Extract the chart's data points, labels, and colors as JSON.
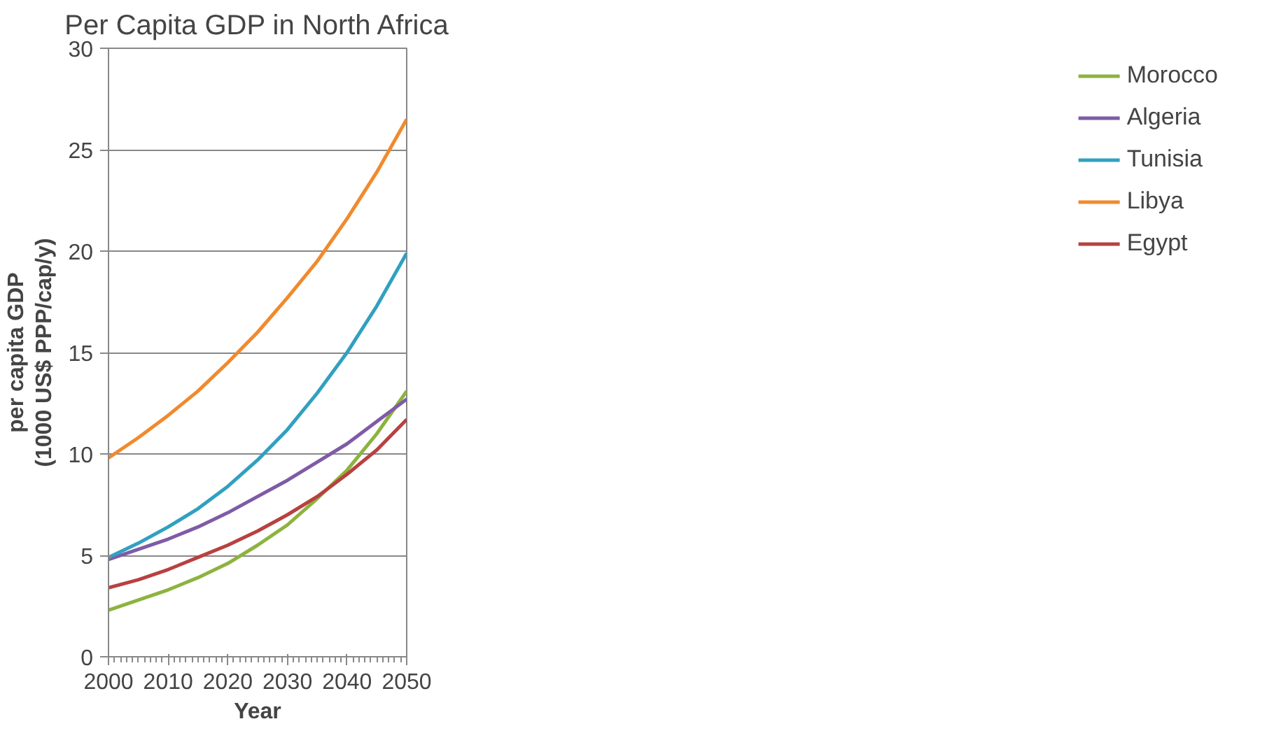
{
  "chart_data": {
    "type": "line",
    "title": "Per Capita GDP in North Africa",
    "xlabel": "Year",
    "ylabel": "per capita GDP\n(1000 US$ PPP/cap/y)",
    "x": [
      2000,
      2005,
      2010,
      2015,
      2020,
      2025,
      2030,
      2035,
      2040,
      2045,
      2050
    ],
    "xlim": [
      2000,
      2050
    ],
    "xticks": [
      2000,
      2010,
      2020,
      2030,
      2040,
      2050
    ],
    "ylim": [
      0,
      30
    ],
    "yticks": [
      0,
      5,
      10,
      15,
      20,
      25,
      30
    ],
    "grid": "y",
    "legend": "right",
    "marker": "none",
    "line_style": "solid",
    "series": [
      {
        "name": "Morocco",
        "color": "#8db33f",
        "values": [
          2.3,
          2.8,
          3.3,
          3.9,
          4.6,
          5.5,
          6.5,
          7.8,
          9.2,
          11.0,
          13.1
        ]
      },
      {
        "name": "Algeria",
        "color": "#7f5ba6",
        "values": [
          4.8,
          5.3,
          5.8,
          6.4,
          7.1,
          7.9,
          8.7,
          9.6,
          10.5,
          11.6,
          12.7
        ]
      },
      {
        "name": "Tunisia",
        "color": "#31a0c0",
        "values": [
          4.9,
          5.6,
          6.4,
          7.3,
          8.4,
          9.7,
          11.2,
          13.0,
          15.0,
          17.3,
          19.9
        ]
      },
      {
        "name": "Libya",
        "color": "#f08a2e",
        "values": [
          9.8,
          10.8,
          11.9,
          13.1,
          14.5,
          16.0,
          17.7,
          19.5,
          21.6,
          23.9,
          26.5
        ]
      },
      {
        "name": "Egypt",
        "color": "#b8413f",
        "values": [
          3.4,
          3.8,
          4.3,
          4.9,
          5.5,
          6.2,
          7.0,
          7.9,
          9.0,
          10.2,
          11.7
        ]
      }
    ]
  }
}
